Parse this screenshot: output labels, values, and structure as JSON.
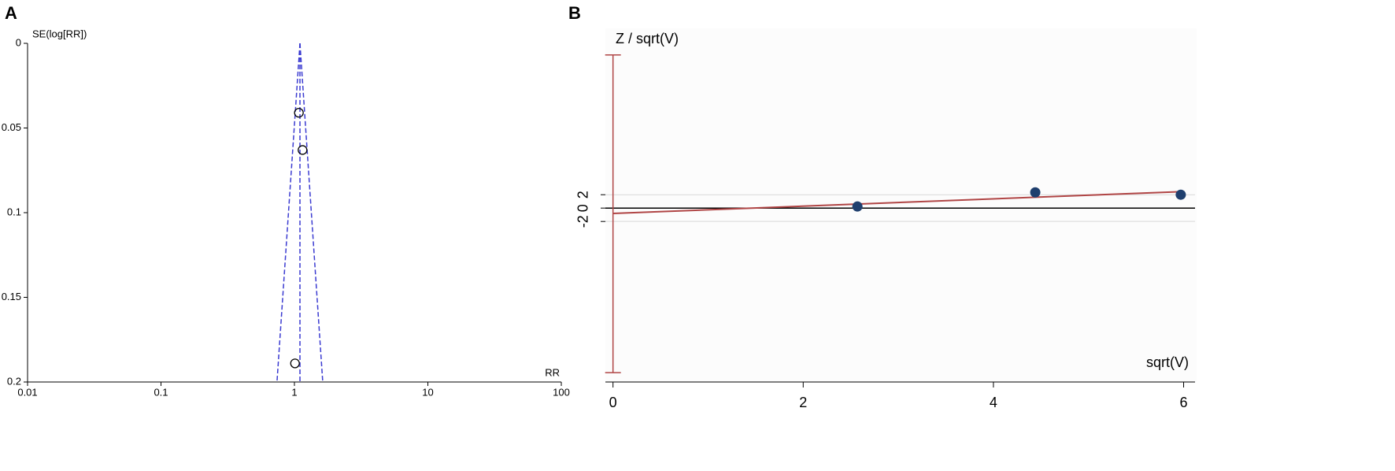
{
  "chart_data": [
    {
      "panel": "A",
      "type": "funnel",
      "x_label": "RR",
      "y_label": "SE(log[RR])",
      "x_log": true,
      "y_reversed": true,
      "xlim": [
        0.01,
        100
      ],
      "ylim": [
        0,
        0.2
      ],
      "xticks": [
        0.01,
        0.1,
        1,
        10,
        100
      ],
      "yticks": [
        0,
        0.05,
        0.1,
        0.15,
        0.2
      ],
      "x": [
        1.08,
        1.15,
        1.01
      ],
      "values": [
        0.041,
        0.063,
        0.189
      ],
      "color": "#000000",
      "pooled": 1.1,
      "limits": {
        "se": [
          0,
          0.2
        ],
        "lower": [
          1.1,
          0.74
        ],
        "upper": [
          1.1,
          1.63
        ]
      },
      "funnel_color": "#3b3bd1"
    },
    {
      "panel": "B",
      "type": "galbraith",
      "x_label": "sqrt(V)",
      "y_label": "Z / sqrt(V)",
      "xlim": [
        -0.08,
        6.12
      ],
      "ylim": [
        -26,
        26.4
      ],
      "xticks": [
        0,
        2,
        4,
        6
      ],
      "yticks": [
        -2,
        0,
        2
      ],
      "x": [
        2.57,
        4.44,
        5.97
      ],
      "values": [
        0.24,
        2.35,
        2.0
      ],
      "color": "#1f3f6e",
      "fit": {
        "x": [
          0,
          6
        ],
        "values": [
          -0.8,
          2.47
        ]
      },
      "intercept_ci": {
        "x": 0,
        "values": [
          -24.6,
          22.9
        ]
      },
      "fit_color": "#b04545"
    }
  ]
}
